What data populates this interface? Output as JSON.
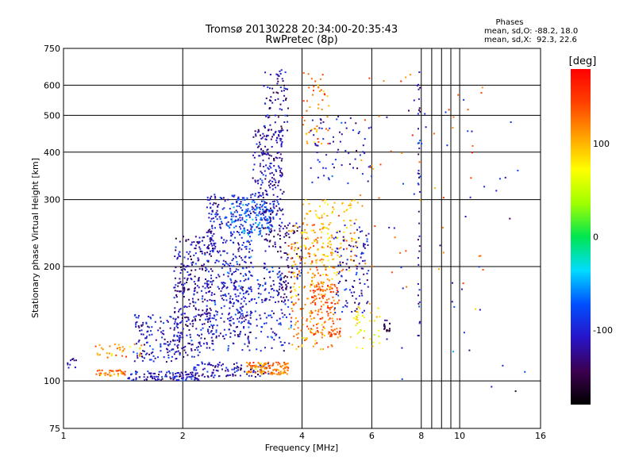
{
  "chart_data": {
    "type": "scatter",
    "title": "Tromsø 20130228 20:34:00-20:35:43",
    "subtitle": "RwPretec (8p)",
    "xlabel": "Frequency [MHz]",
    "ylabel": "Stationary phase Virtual Height [km]",
    "x_scale": "log",
    "y_scale": "log",
    "xlim": [
      1,
      16
    ],
    "ylim": [
      75,
      750
    ],
    "x_ticks": [
      1,
      2,
      4,
      6,
      8,
      10,
      16
    ],
    "x_minor_gridlines": [
      8.5,
      9,
      9.5
    ],
    "y_ticks": [
      75,
      100,
      200,
      300,
      400,
      500,
      600,
      750
    ],
    "grid": true,
    "phases_box": {
      "title": "Phases",
      "line_o": "mean, sd,O: -88.2, 18.0",
      "line_x": "mean, sd,X:  92.3, 22.6"
    },
    "colorbar": {
      "label": "[deg]",
      "range": [
        -180,
        180
      ],
      "ticks": [
        100,
        0,
        -100
      ],
      "colors": [
        "#000000",
        "#3c0050",
        "#2814c8",
        "#0050ff",
        "#00dcff",
        "#00e650",
        "#a0ff00",
        "#ffff00",
        "#ffa000",
        "#ff4000",
        "#ff0000"
      ]
    },
    "clusters": [
      {
        "fmin": 1.02,
        "fmax": 1.08,
        "hmin": 108,
        "hmax": 115,
        "phase": -120,
        "n": 10
      },
      {
        "fmin": 1.2,
        "fmax": 1.45,
        "hmin": 103,
        "hmax": 107,
        "phase": 120,
        "n": 40
      },
      {
        "fmin": 1.45,
        "fmax": 2.2,
        "hmin": 100,
        "hmax": 106,
        "phase": -110,
        "n": 110
      },
      {
        "fmin": 2.1,
        "fmax": 3.3,
        "hmin": 102,
        "hmax": 112,
        "phase": -115,
        "n": 110
      },
      {
        "fmin": 2.9,
        "fmax": 3.7,
        "hmin": 104,
        "hmax": 112,
        "phase": 120,
        "n": 120
      },
      {
        "fmin": 1.2,
        "fmax": 1.6,
        "hmin": 115,
        "hmax": 125,
        "phase": 110,
        "n": 35
      },
      {
        "fmin": 1.5,
        "fmax": 2.0,
        "hmin": 112,
        "hmax": 150,
        "phase": -110,
        "n": 140
      },
      {
        "fmin": 1.9,
        "fmax": 2.4,
        "hmin": 115,
        "hmax": 240,
        "phase": -120,
        "n": 320
      },
      {
        "fmin": 2.3,
        "fmax": 3.0,
        "hmin": 130,
        "hmax": 310,
        "phase": -105,
        "n": 400
      },
      {
        "fmin": 2.6,
        "fmax": 3.4,
        "hmin": 240,
        "hmax": 300,
        "phase": -70,
        "n": 140
      },
      {
        "fmin": 3.0,
        "fmax": 3.6,
        "hmin": 250,
        "hmax": 460,
        "phase": -115,
        "n": 240
      },
      {
        "fmin": 3.2,
        "fmax": 3.7,
        "hmin": 450,
        "hmax": 660,
        "phase": -120,
        "n": 70
      },
      {
        "fmin": 2.5,
        "fmax": 3.8,
        "hmin": 120,
        "hmax": 200,
        "phase": -100,
        "n": 190
      },
      {
        "fmin": 3.2,
        "fmax": 4.0,
        "hmin": 160,
        "hmax": 260,
        "phase": -125,
        "n": 130
      },
      {
        "fmin": 3.7,
        "fmax": 4.8,
        "hmin": 120,
        "hmax": 260,
        "phase": 115,
        "n": 230
      },
      {
        "fmin": 4.2,
        "fmax": 5.0,
        "hmin": 130,
        "hmax": 180,
        "phase": 140,
        "n": 110
      },
      {
        "fmin": 4.0,
        "fmax": 5.5,
        "hmin": 190,
        "hmax": 300,
        "phase": 100,
        "n": 130
      },
      {
        "fmin": 4.8,
        "fmax": 5.9,
        "hmin": 150,
        "hmax": 260,
        "phase": -110,
        "n": 110
      },
      {
        "fmin": 4.0,
        "fmax": 4.7,
        "hmin": 420,
        "hmax": 650,
        "phase": 120,
        "n": 50
      },
      {
        "fmin": 4.2,
        "fmax": 6.0,
        "hmin": 330,
        "hmax": 500,
        "phase": -105,
        "n": 70
      },
      {
        "fmin": 5.3,
        "fmax": 6.3,
        "hmin": 120,
        "hmax": 160,
        "phase": 80,
        "n": 40
      },
      {
        "fmin": 6.4,
        "fmax": 6.7,
        "hmin": 135,
        "hmax": 145,
        "phase": -150,
        "n": 16
      },
      {
        "fmin": 7.85,
        "fmax": 7.95,
        "hmin": 130,
        "hmax": 660,
        "phase": -120,
        "n": 40
      },
      {
        "fmin": 5.5,
        "fmax": 12.0,
        "hmin": 150,
        "hmax": 650,
        "phase": 130,
        "n": 50
      },
      {
        "fmin": 6.5,
        "fmax": 15.0,
        "hmin": 85,
        "hmax": 650,
        "phase": -100,
        "n": 45
      }
    ]
  }
}
